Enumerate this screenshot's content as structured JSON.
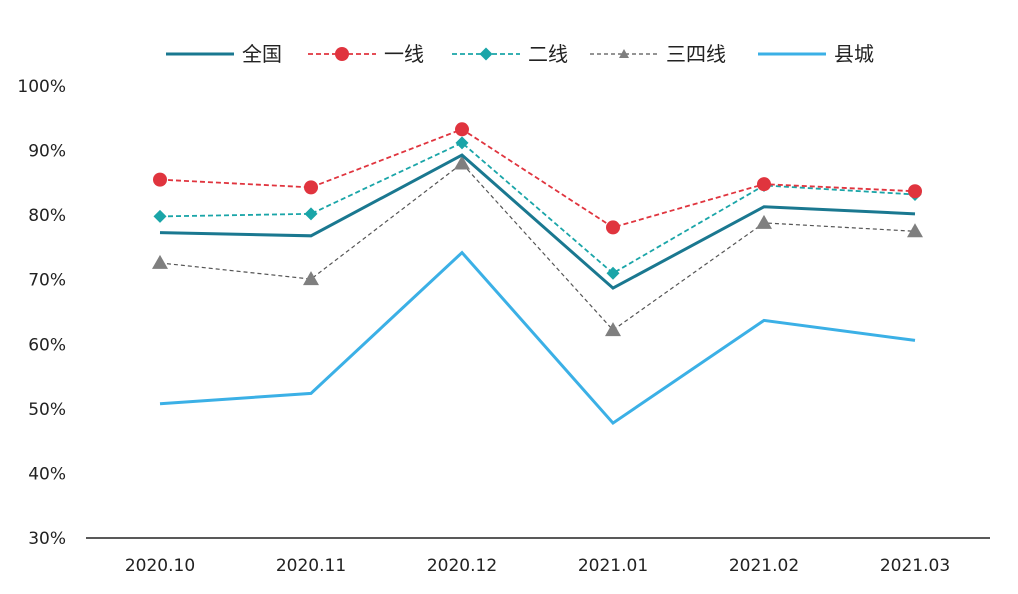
{
  "chart_data": {
    "type": "line",
    "categories": [
      "2020.10",
      "2020.11",
      "2020.12",
      "2021.01",
      "2021.02",
      "2021.03"
    ],
    "ylim": [
      30,
      100
    ],
    "yticks": [
      "30%",
      "40%",
      "50%",
      "60%",
      "70%",
      "80%",
      "90%",
      "100%"
    ],
    "ytick_values": [
      30,
      40,
      50,
      60,
      70,
      80,
      90,
      100
    ],
    "grid": false,
    "legend_position": "top",
    "series": [
      {
        "name": "全国",
        "values": [
          77.3,
          76.8,
          89.3,
          68.7,
          81.3,
          80.2
        ],
        "color": "#1A7890",
        "style": "solid",
        "marker": "none"
      },
      {
        "name": "一线",
        "values": [
          85.5,
          84.3,
          93.3,
          78.1,
          84.8,
          83.7
        ],
        "color": "#E0343E",
        "style": "dashed",
        "marker": "circle"
      },
      {
        "name": "二线",
        "values": [
          79.8,
          80.2,
          91.2,
          71.0,
          84.6,
          83.2
        ],
        "color": "#1AA5A8",
        "style": "dashed",
        "marker": "diamond"
      },
      {
        "name": "三四线",
        "values": [
          72.6,
          70.1,
          88.0,
          62.2,
          78.8,
          77.5
        ],
        "color": "#555555",
        "style": "dashed",
        "marker": "triangle"
      },
      {
        "name": "县城",
        "values": [
          50.8,
          52.4,
          74.2,
          47.8,
          63.7,
          60.6
        ],
        "color": "#3BB0E6",
        "style": "solid",
        "marker": "none"
      }
    ]
  }
}
